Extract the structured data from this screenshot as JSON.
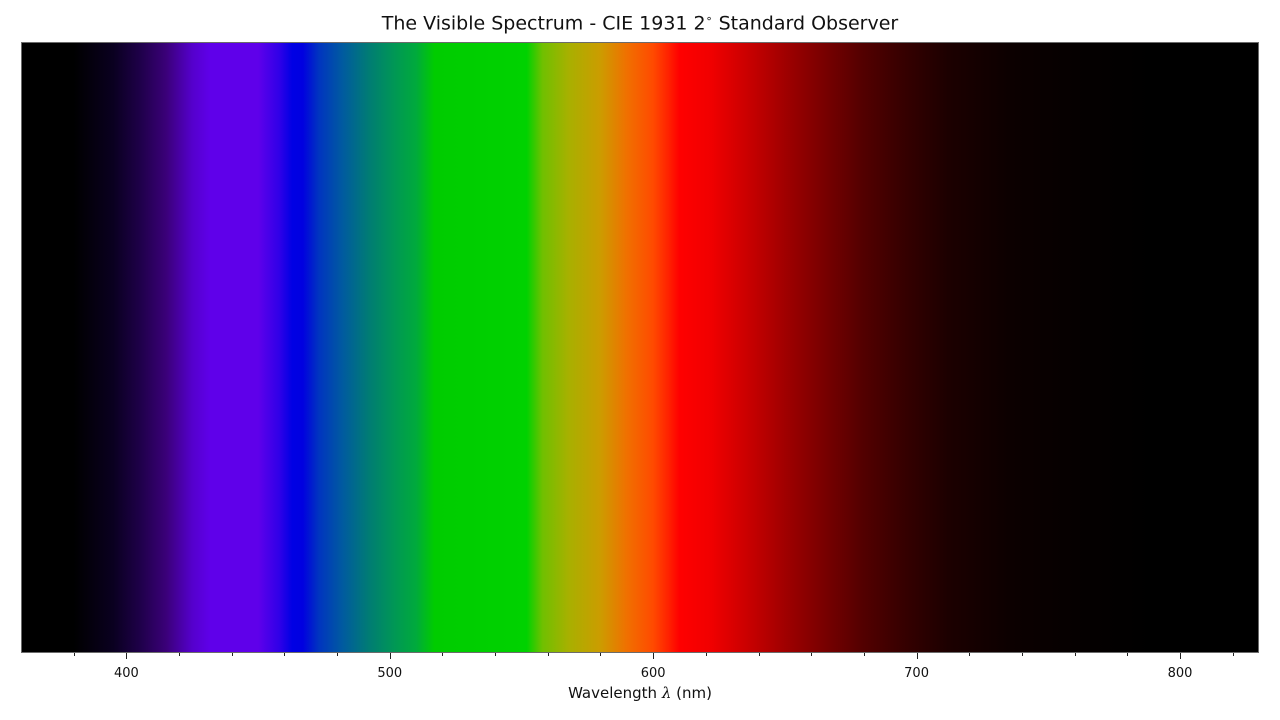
{
  "chart_data": {
    "type": "heatmap",
    "title": "The Visible Spectrum - CIE 1931 2$^\\circ$ Standard Observer",
    "title_display": {
      "prefix": "The Visible Spectrum - CIE 1931 2",
      "degree": "∘",
      "suffix": " Standard Observer"
    },
    "xlabel": "Wavelength λ (nm)",
    "xlabel_display": {
      "prefix": "Wavelength ",
      "symbol": "λ",
      "suffix": " (nm)"
    },
    "xlim": [
      360,
      830
    ],
    "major_ticks": [
      400,
      500,
      600,
      700,
      800
    ],
    "minor_ticks": [
      380,
      420,
      440,
      460,
      480,
      520,
      540,
      560,
      580,
      620,
      640,
      660,
      680,
      720,
      740,
      760,
      780,
      820
    ],
    "grid": false,
    "colormap_stops": [
      {
        "wavelength": 360,
        "color": "#000000"
      },
      {
        "wavelength": 380,
        "color": "#000000"
      },
      {
        "wavelength": 395,
        "color": "#0a0020"
      },
      {
        "wavelength": 405,
        "color": "#1e0048"
      },
      {
        "wavelength": 415,
        "color": "#3a0078"
      },
      {
        "wavelength": 425,
        "color": "#5500cc"
      },
      {
        "wavelength": 432,
        "color": "#5f00ea"
      },
      {
        "wavelength": 450,
        "color": "#5f00ea"
      },
      {
        "wavelength": 458,
        "color": "#3000e8"
      },
      {
        "wavelength": 463,
        "color": "#0000e4"
      },
      {
        "wavelength": 467,
        "color": "#0000e0"
      },
      {
        "wavelength": 473,
        "color": "#0034c0"
      },
      {
        "wavelength": 482,
        "color": "#005aa0"
      },
      {
        "wavelength": 492,
        "color": "#007c74"
      },
      {
        "wavelength": 502,
        "color": "#009854"
      },
      {
        "wavelength": 510,
        "color": "#00aa3c"
      },
      {
        "wavelength": 517,
        "color": "#00cc00"
      },
      {
        "wavelength": 552,
        "color": "#00d200"
      },
      {
        "wavelength": 558,
        "color": "#70c000"
      },
      {
        "wavelength": 568,
        "color": "#a8b000"
      },
      {
        "wavelength": 580,
        "color": "#cc9c00"
      },
      {
        "wavelength": 590,
        "color": "#f07000"
      },
      {
        "wavelength": 600,
        "color": "#ff4a00"
      },
      {
        "wavelength": 606,
        "color": "#ff2000"
      },
      {
        "wavelength": 610,
        "color": "#ff0000"
      },
      {
        "wavelength": 622,
        "color": "#f00000"
      },
      {
        "wavelength": 635,
        "color": "#cc0000"
      },
      {
        "wavelength": 650,
        "color": "#a00000"
      },
      {
        "wavelength": 665,
        "color": "#780000"
      },
      {
        "wavelength": 680,
        "color": "#520000"
      },
      {
        "wavelength": 695,
        "color": "#360000"
      },
      {
        "wavelength": 712,
        "color": "#1c0000"
      },
      {
        "wavelength": 735,
        "color": "#0c0000"
      },
      {
        "wavelength": 760,
        "color": "#050000"
      },
      {
        "wavelength": 790,
        "color": "#000000"
      },
      {
        "wavelength": 830,
        "color": "#000000"
      }
    ]
  }
}
